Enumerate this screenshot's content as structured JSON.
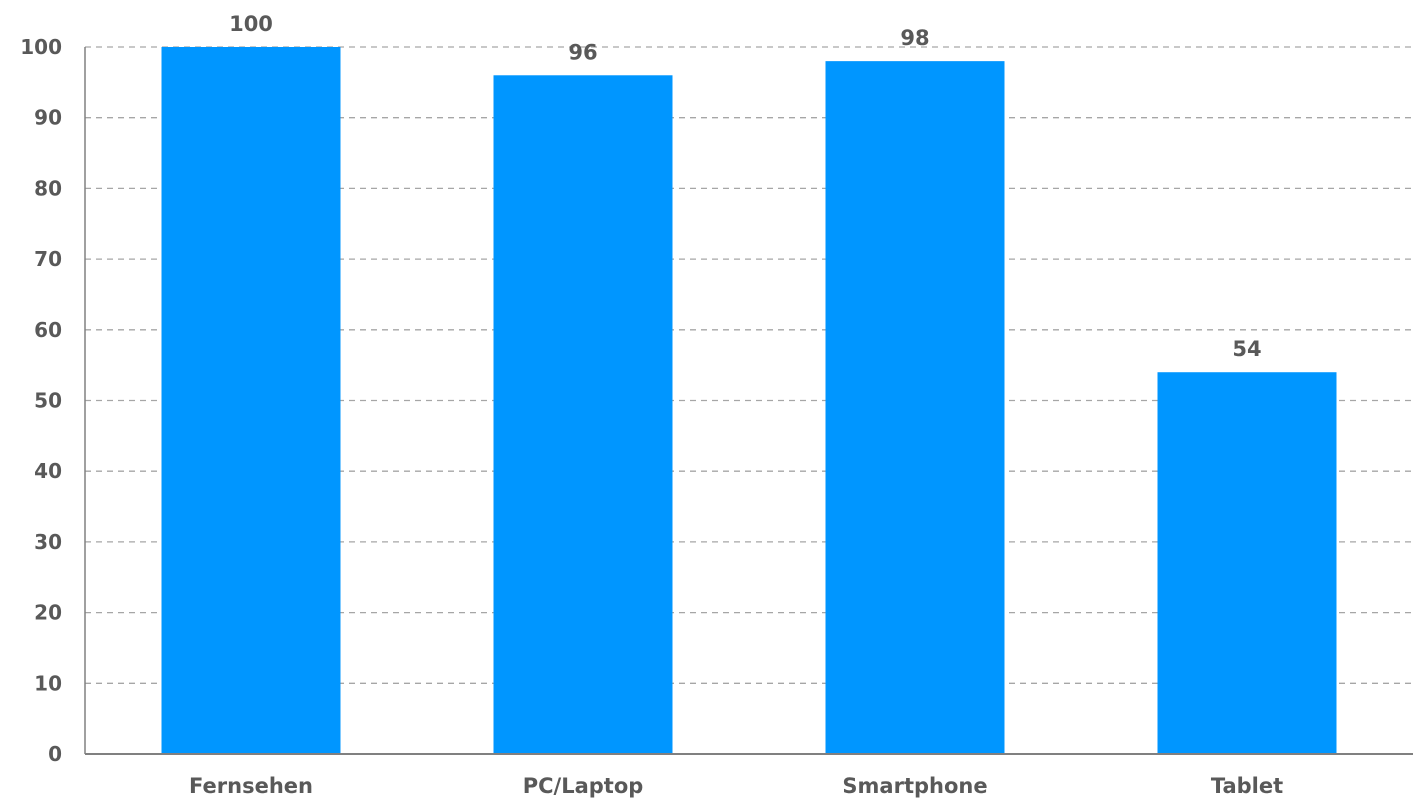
{
  "chart_data": {
    "type": "bar",
    "title": "",
    "xlabel": "",
    "ylabel": "",
    "categories": [
      "Fernsehen",
      "PC/Laptop",
      "Smartphone",
      "Tablet"
    ],
    "values": [
      100,
      96,
      98,
      54
    ],
    "ylim": [
      0,
      100
    ],
    "yticks": [
      0,
      10,
      20,
      30,
      40,
      50,
      60,
      70,
      80,
      90,
      100
    ],
    "grid": true,
    "legend": "none",
    "data_labels": true,
    "colors": {
      "bar": "#0096FF",
      "text": "#595959",
      "grid": "#A6A6A6",
      "axis": "#808080"
    }
  }
}
